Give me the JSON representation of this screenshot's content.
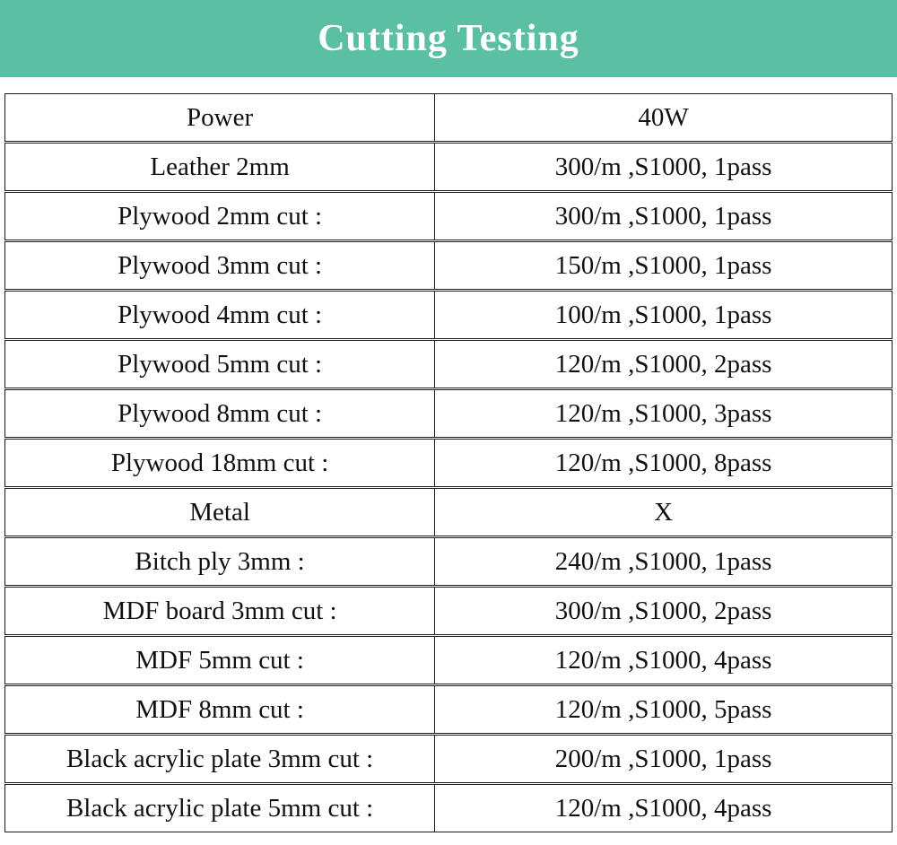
{
  "banner": {
    "title": "Cutting Testing",
    "background_color": "#5bbfa3",
    "text_color": "#ffffff"
  },
  "table": {
    "border_color": "#1a1a1a",
    "columns": [
      "parameter",
      "value"
    ],
    "rows": [
      {
        "label": "Power",
        "value": "40W"
      },
      {
        "label": "Leather 2mm",
        "value": "300/m ,S1000, 1pass"
      },
      {
        "label": "Plywood 2mm cut :",
        "value": "300/m ,S1000, 1pass"
      },
      {
        "label": "Plywood 3mm cut :",
        "value": "150/m ,S1000, 1pass"
      },
      {
        "label": "Plywood 4mm cut :",
        "value": "100/m ,S1000, 1pass"
      },
      {
        "label": "Plywood 5mm cut :",
        "value": "120/m ,S1000, 2pass"
      },
      {
        "label": "Plywood 8mm cut :",
        "value": "120/m ,S1000, 3pass"
      },
      {
        "label": "Plywood 18mm cut :",
        "value": "120/m ,S1000, 8pass"
      },
      {
        "label": "Metal",
        "value": "X"
      },
      {
        "label": "Bitch ply 3mm :",
        "value": "240/m ,S1000, 1pass"
      },
      {
        "label": "MDF board 3mm cut :",
        "value": "300/m ,S1000, 2pass"
      },
      {
        "label": "MDF 5mm cut :",
        "value": "120/m ,S1000, 4pass"
      },
      {
        "label": "MDF 8mm cut :",
        "value": "120/m ,S1000, 5pass"
      },
      {
        "label": "Black acrylic plate 3mm cut :",
        "value": "200/m ,S1000, 1pass"
      },
      {
        "label": "Black acrylic plate 5mm cut :",
        "value": "120/m ,S1000, 4pass"
      }
    ]
  }
}
